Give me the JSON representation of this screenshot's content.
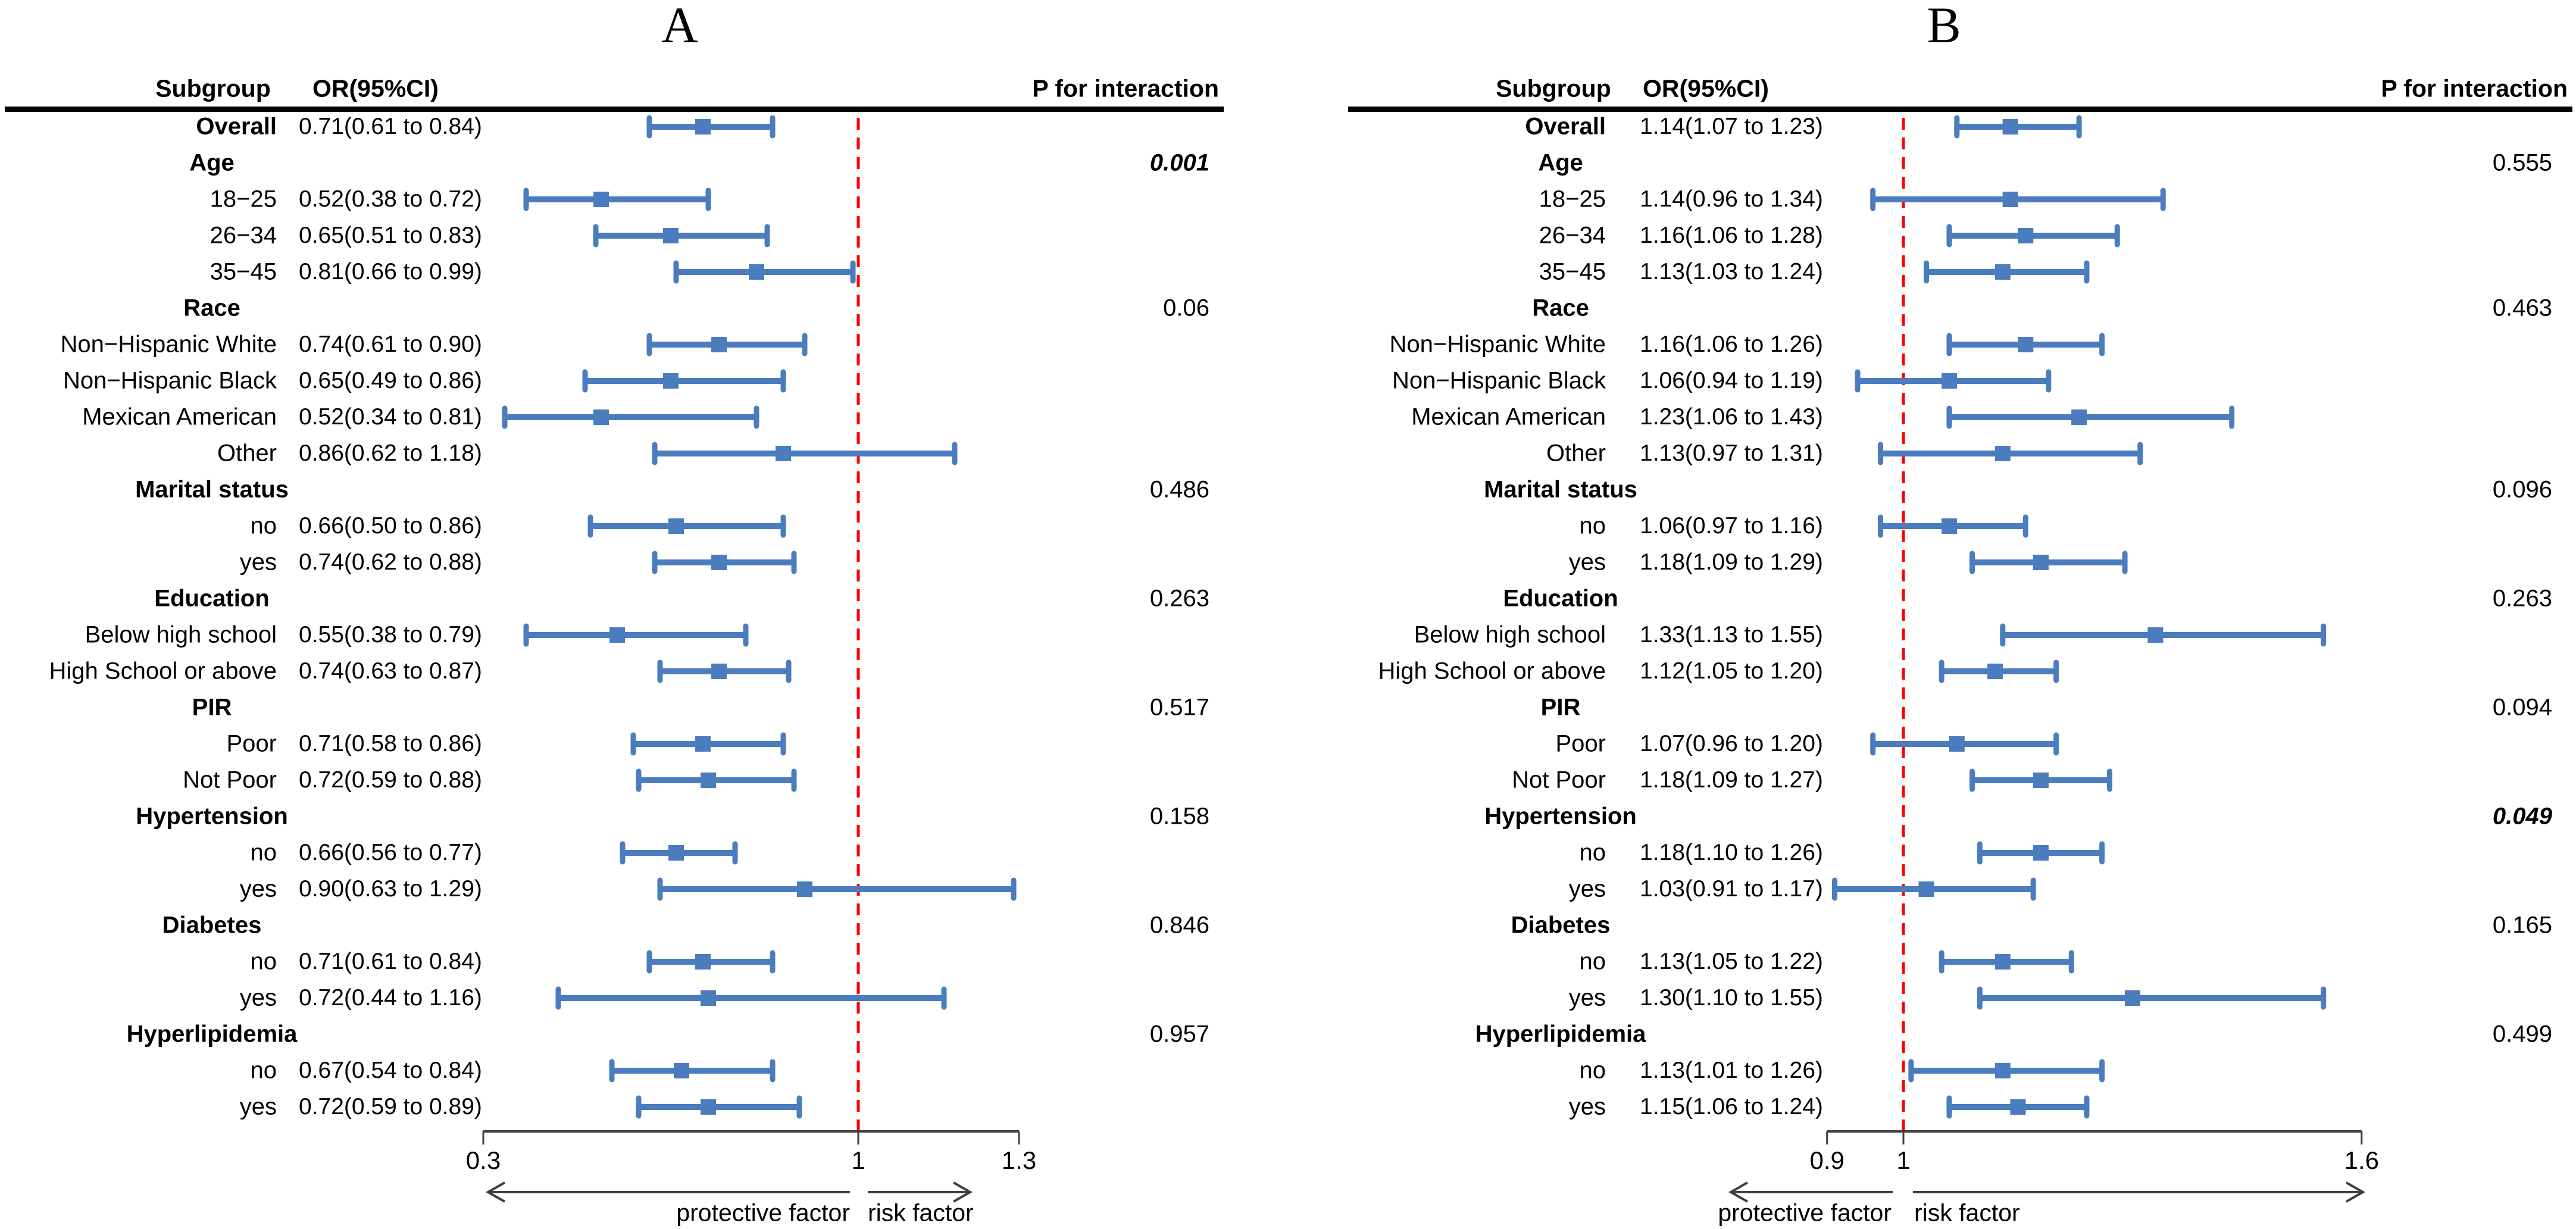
{
  "figure": {
    "background": "#ffffff",
    "colors": {
      "marker": "#4a7cbe",
      "ref_line": "#fe0000",
      "axis": "#3f3f3f",
      "rule": "#000000",
      "text": "#000000"
    }
  },
  "chart_data": {
    "type": "forest",
    "panels": [
      {
        "title": "A",
        "columns": {
          "subgroup": "Subgroup",
          "or": "OR(95%CI)",
          "p": "P for interaction"
        },
        "axis": {
          "scale": "linear",
          "xlim": [
            0.3,
            1.3
          ],
          "tick_values": [
            0.3,
            1,
            1.3
          ],
          "tick_labels": [
            "0.3",
            "1",
            "1.3"
          ],
          "ref_value": 1,
          "left_arrow_label": "protective factor",
          "right_arrow_label": "risk factor"
        },
        "rows": [
          {
            "kind": "item",
            "label": "Overall",
            "bold": true,
            "or_text": "0.71(0.61 to 0.84)",
            "est": 0.71,
            "lo": 0.61,
            "hi": 0.84
          },
          {
            "kind": "group",
            "label": "Age",
            "p": "0.001",
            "p_emphasis": true
          },
          {
            "kind": "item",
            "label": "18−25",
            "or_text": "0.52(0.38 to 0.72)",
            "est": 0.52,
            "lo": 0.38,
            "hi": 0.72
          },
          {
            "kind": "item",
            "label": "26−34",
            "or_text": "0.65(0.51 to 0.83)",
            "est": 0.65,
            "lo": 0.51,
            "hi": 0.83
          },
          {
            "kind": "item",
            "label": "35−45",
            "or_text": "0.81(0.66 to 0.99)",
            "est": 0.81,
            "lo": 0.66,
            "hi": 0.99
          },
          {
            "kind": "group",
            "label": "Race",
            "p": "0.06"
          },
          {
            "kind": "item",
            "label": "Non−Hispanic White",
            "or_text": "0.74(0.61 to 0.90)",
            "est": 0.74,
            "lo": 0.61,
            "hi": 0.9
          },
          {
            "kind": "item",
            "label": "Non−Hispanic Black",
            "or_text": "0.65(0.49 to 0.86)",
            "est": 0.65,
            "lo": 0.49,
            "hi": 0.86
          },
          {
            "kind": "item",
            "label": "Mexican American",
            "or_text": "0.52(0.34 to 0.81)",
            "est": 0.52,
            "lo": 0.34,
            "hi": 0.81
          },
          {
            "kind": "item",
            "label": "Other",
            "or_text": "0.86(0.62 to 1.18)",
            "est": 0.86,
            "lo": 0.62,
            "hi": 1.18
          },
          {
            "kind": "group",
            "label": "Marital status",
            "p": "0.486"
          },
          {
            "kind": "item",
            "label": "no",
            "or_text": "0.66(0.50 to 0.86)",
            "est": 0.66,
            "lo": 0.5,
            "hi": 0.86
          },
          {
            "kind": "item",
            "label": "yes",
            "or_text": "0.74(0.62 to 0.88)",
            "est": 0.74,
            "lo": 0.62,
            "hi": 0.88
          },
          {
            "kind": "group",
            "label": "Education",
            "p": "0.263"
          },
          {
            "kind": "item",
            "label": "Below high school",
            "or_text": "0.55(0.38 to 0.79)",
            "est": 0.55,
            "lo": 0.38,
            "hi": 0.79
          },
          {
            "kind": "item",
            "label": "High School or above",
            "or_text": "0.74(0.63 to 0.87)",
            "est": 0.74,
            "lo": 0.63,
            "hi": 0.87
          },
          {
            "kind": "group",
            "label": "PIR",
            "p": "0.517"
          },
          {
            "kind": "item",
            "label": "Poor",
            "or_text": "0.71(0.58 to 0.86)",
            "est": 0.71,
            "lo": 0.58,
            "hi": 0.86
          },
          {
            "kind": "item",
            "label": "Not Poor",
            "or_text": "0.72(0.59 to 0.88)",
            "est": 0.72,
            "lo": 0.59,
            "hi": 0.88
          },
          {
            "kind": "group",
            "label": "Hypertension",
            "p": "0.158"
          },
          {
            "kind": "item",
            "label": "no",
            "or_text": "0.66(0.56 to 0.77)",
            "est": 0.66,
            "lo": 0.56,
            "hi": 0.77
          },
          {
            "kind": "item",
            "label": "yes",
            "or_text": "0.90(0.63 to 1.29)",
            "est": 0.9,
            "lo": 0.63,
            "hi": 1.29
          },
          {
            "kind": "group",
            "label": "Diabetes",
            "p": "0.846"
          },
          {
            "kind": "item",
            "label": "no",
            "or_text": "0.71(0.61 to 0.84)",
            "est": 0.71,
            "lo": 0.61,
            "hi": 0.84
          },
          {
            "kind": "item",
            "label": "yes",
            "or_text": "0.72(0.44 to 1.16)",
            "est": 0.72,
            "lo": 0.44,
            "hi": 1.16
          },
          {
            "kind": "group",
            "label": "Hyperlipidemia",
            "p": "0.957"
          },
          {
            "kind": "item",
            "label": "no",
            "or_text": "0.67(0.54 to 0.84)",
            "est": 0.67,
            "lo": 0.54,
            "hi": 0.84
          },
          {
            "kind": "item",
            "label": "yes",
            "or_text": "0.72(0.59 to 0.89)",
            "est": 0.72,
            "lo": 0.59,
            "hi": 0.89
          }
        ]
      },
      {
        "title": "B",
        "columns": {
          "subgroup": "Subgroup",
          "or": "OR(95%CI)",
          "p": "P for interaction"
        },
        "axis": {
          "scale": "linear",
          "xlim": [
            0.9,
            1.6
          ],
          "tick_values": [
            0.9,
            1,
            1.6
          ],
          "tick_labels": [
            "0.9",
            "1",
            "1.6"
          ],
          "ref_value": 1,
          "left_arrow_label": "protective factor",
          "right_arrow_label": "risk factor"
        },
        "rows": [
          {
            "kind": "item",
            "label": "Overall",
            "bold": true,
            "or_text": "1.14(1.07 to 1.23)",
            "est": 1.14,
            "lo": 1.07,
            "hi": 1.23
          },
          {
            "kind": "group",
            "label": "Age",
            "p": "0.555"
          },
          {
            "kind": "item",
            "label": "18−25",
            "or_text": "1.14(0.96 to 1.34)",
            "est": 1.14,
            "lo": 0.96,
            "hi": 1.34
          },
          {
            "kind": "item",
            "label": "26−34",
            "or_text": "1.16(1.06 to 1.28)",
            "est": 1.16,
            "lo": 1.06,
            "hi": 1.28
          },
          {
            "kind": "item",
            "label": "35−45",
            "or_text": "1.13(1.03 to 1.24)",
            "est": 1.13,
            "lo": 1.03,
            "hi": 1.24
          },
          {
            "kind": "group",
            "label": "Race",
            "p": "0.463"
          },
          {
            "kind": "item",
            "label": "Non−Hispanic White",
            "or_text": "1.16(1.06 to 1.26)",
            "est": 1.16,
            "lo": 1.06,
            "hi": 1.26
          },
          {
            "kind": "item",
            "label": "Non−Hispanic Black",
            "or_text": "1.06(0.94 to 1.19)",
            "est": 1.06,
            "lo": 0.94,
            "hi": 1.19
          },
          {
            "kind": "item",
            "label": "Mexican American",
            "or_text": "1.23(1.06 to 1.43)",
            "est": 1.23,
            "lo": 1.06,
            "hi": 1.43
          },
          {
            "kind": "item",
            "label": "Other",
            "or_text": "1.13(0.97 to 1.31)",
            "est": 1.13,
            "lo": 0.97,
            "hi": 1.31
          },
          {
            "kind": "group",
            "label": "Marital status",
            "p": "0.096"
          },
          {
            "kind": "item",
            "label": "no",
            "or_text": "1.06(0.97 to 1.16)",
            "est": 1.06,
            "lo": 0.97,
            "hi": 1.16
          },
          {
            "kind": "item",
            "label": "yes",
            "or_text": "1.18(1.09 to 1.29)",
            "est": 1.18,
            "lo": 1.09,
            "hi": 1.29
          },
          {
            "kind": "group",
            "label": "Education",
            "p": "0.263"
          },
          {
            "kind": "item",
            "label": "Below high school",
            "or_text": "1.33(1.13 to 1.55)",
            "est": 1.33,
            "lo": 1.13,
            "hi": 1.55
          },
          {
            "kind": "item",
            "label": "High School or above",
            "or_text": "1.12(1.05 to 1.20)",
            "est": 1.12,
            "lo": 1.05,
            "hi": 1.2
          },
          {
            "kind": "group",
            "label": "PIR",
            "p": "0.094"
          },
          {
            "kind": "item",
            "label": "Poor",
            "or_text": "1.07(0.96 to 1.20)",
            "est": 1.07,
            "lo": 0.96,
            "hi": 1.2
          },
          {
            "kind": "item",
            "label": "Not Poor",
            "or_text": "1.18(1.09 to 1.27)",
            "est": 1.18,
            "lo": 1.09,
            "hi": 1.27
          },
          {
            "kind": "group",
            "label": "Hypertension",
            "p": "0.049",
            "p_emphasis": true
          },
          {
            "kind": "item",
            "label": "no",
            "or_text": "1.18(1.10 to 1.26)",
            "est": 1.18,
            "lo": 1.1,
            "hi": 1.26
          },
          {
            "kind": "item",
            "label": "yes",
            "or_text": "1.03(0.91 to 1.17)",
            "est": 1.03,
            "lo": 0.91,
            "hi": 1.17
          },
          {
            "kind": "group",
            "label": "Diabetes",
            "p": "0.165"
          },
          {
            "kind": "item",
            "label": "no",
            "or_text": "1.13(1.05 to 1.22)",
            "est": 1.13,
            "lo": 1.05,
            "hi": 1.22
          },
          {
            "kind": "item",
            "label": "yes",
            "or_text": "1.30(1.10 to 1.55)",
            "est": 1.3,
            "lo": 1.1,
            "hi": 1.55
          },
          {
            "kind": "group",
            "label": "Hyperlipidemia",
            "p": "0.499"
          },
          {
            "kind": "item",
            "label": "no",
            "or_text": "1.13(1.01 to 1.26)",
            "est": 1.13,
            "lo": 1.01,
            "hi": 1.26
          },
          {
            "kind": "item",
            "label": "yes",
            "or_text": "1.15(1.06 to 1.24)",
            "est": 1.15,
            "lo": 1.06,
            "hi": 1.24
          }
        ]
      }
    ]
  }
}
